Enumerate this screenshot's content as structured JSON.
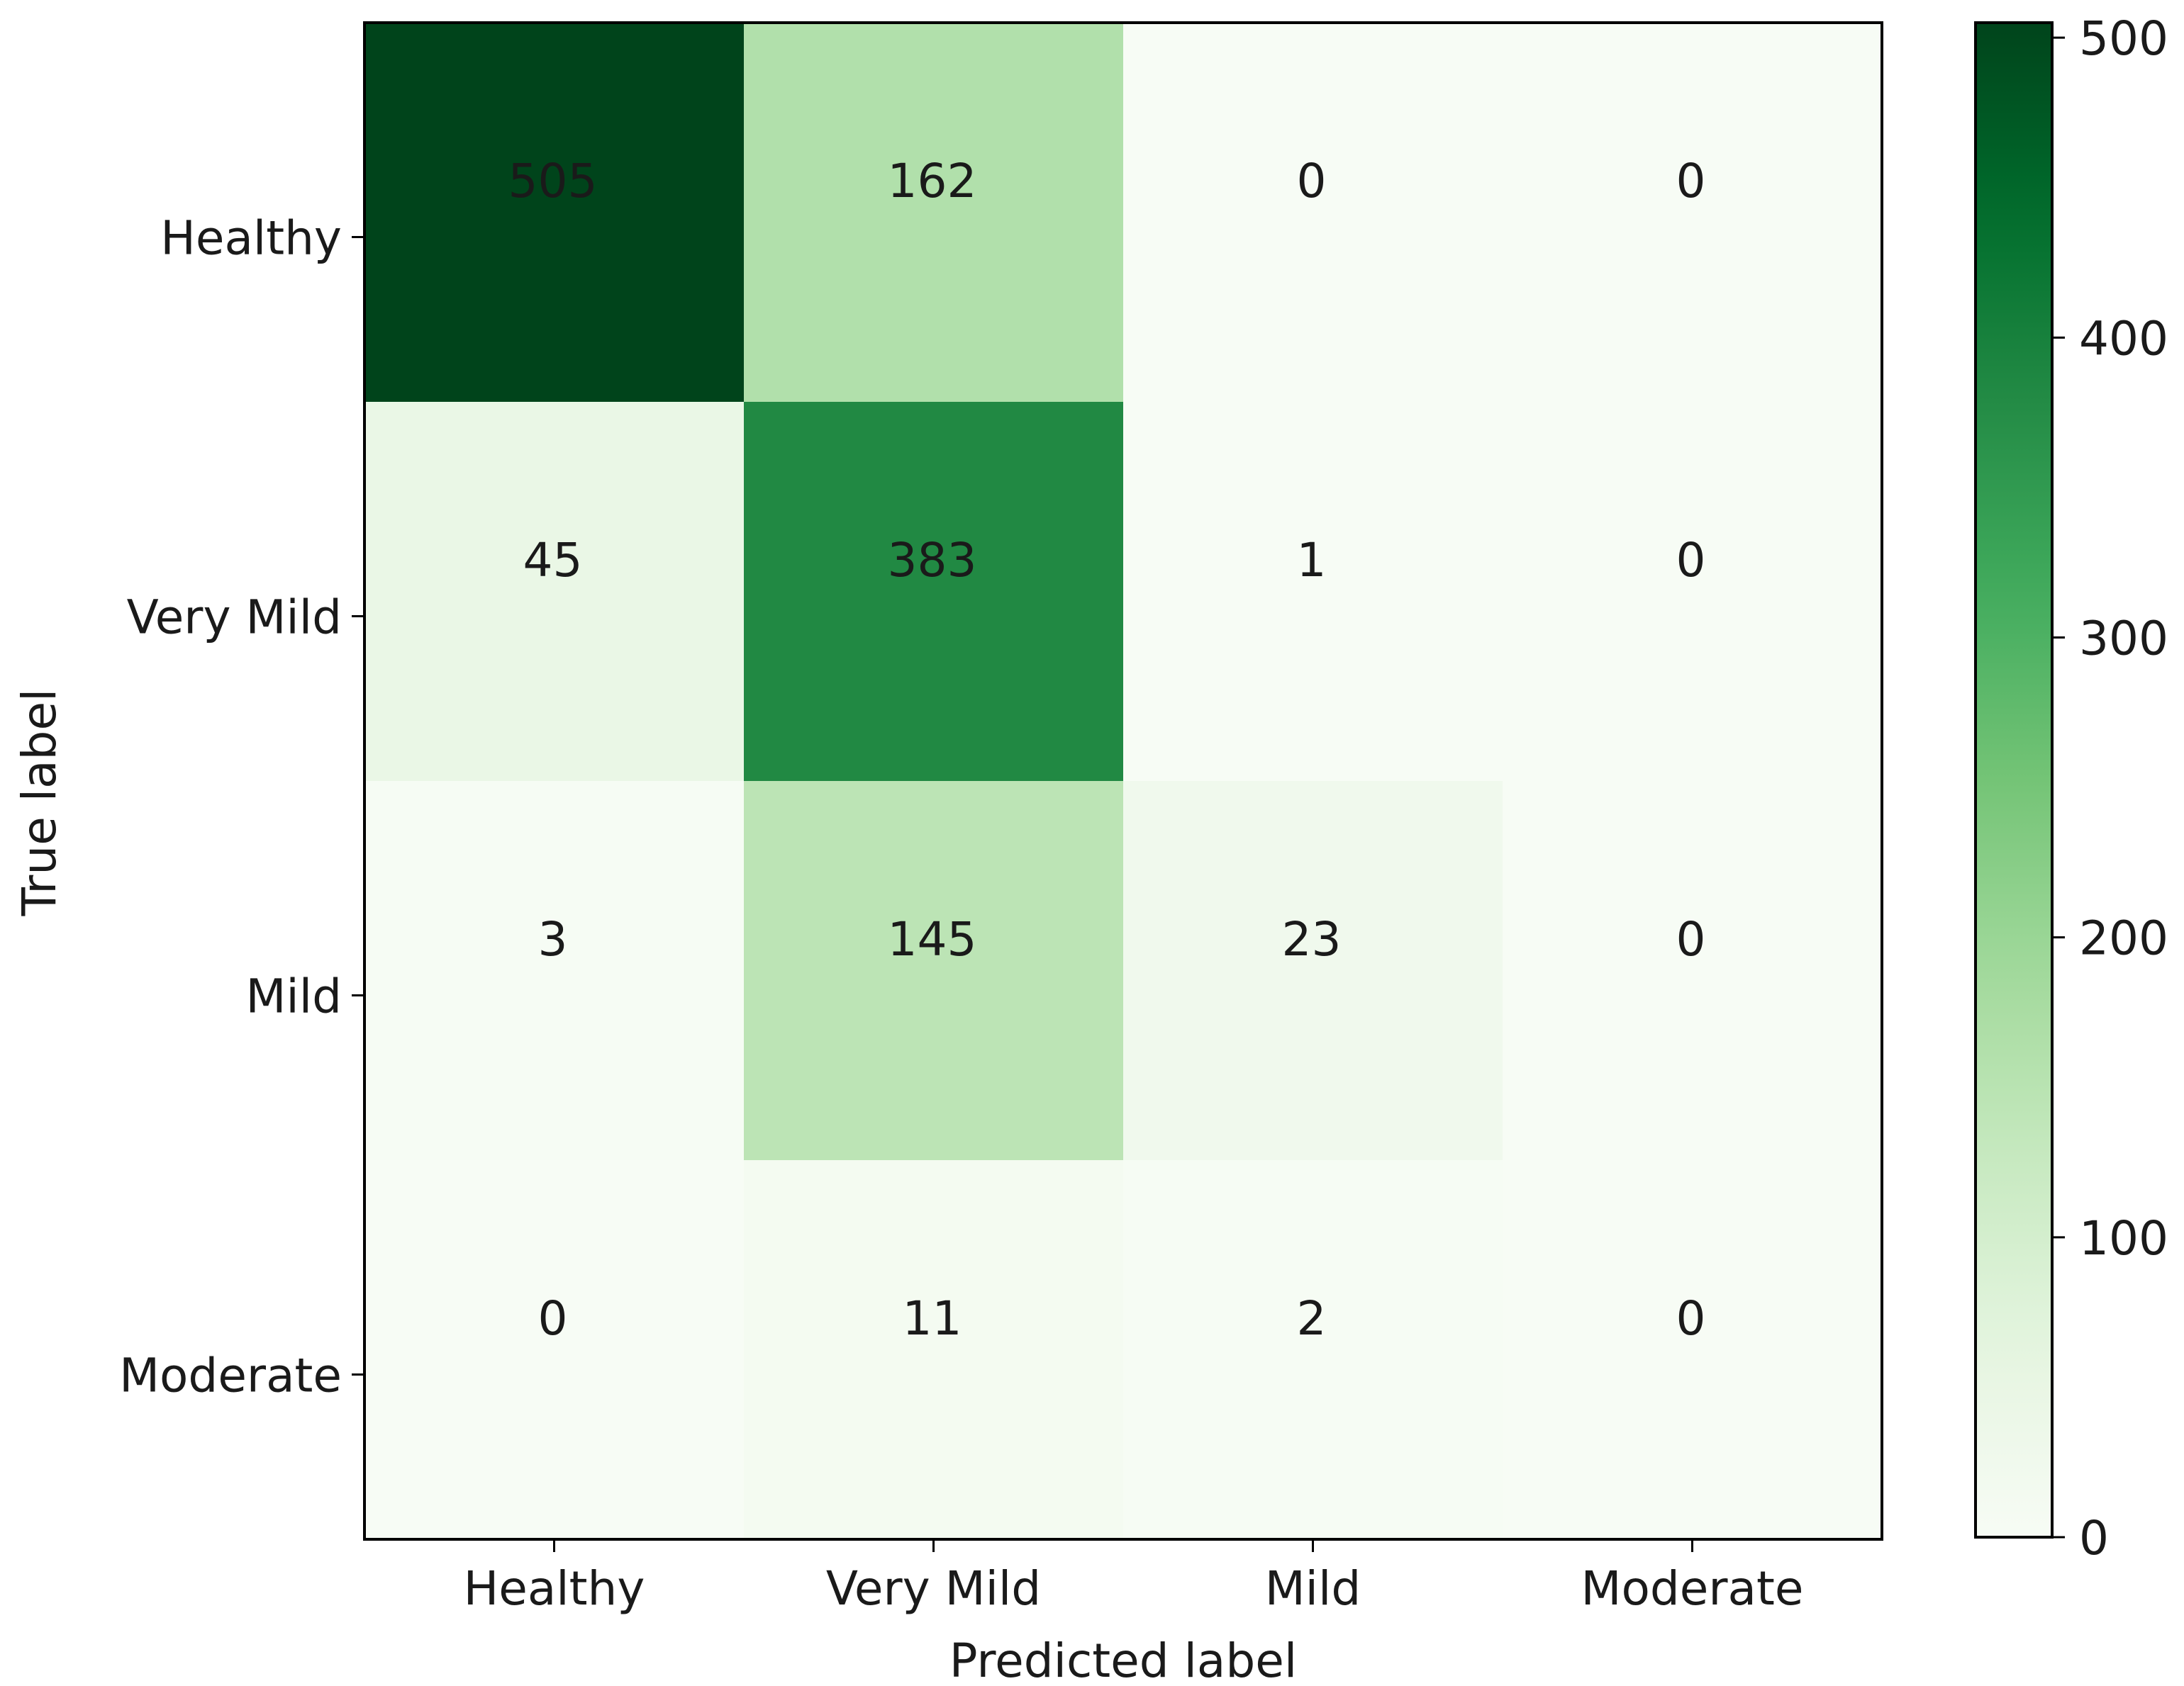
{
  "chart_data": {
    "type": "heatmap",
    "title": "",
    "xlabel": "Predicted label",
    "ylabel": "True label",
    "x_categories": [
      "Healthy",
      "Very Mild",
      "Mild",
      "Moderate"
    ],
    "y_categories": [
      "Healthy",
      "Very Mild",
      "Mild",
      "Moderate"
    ],
    "values": [
      [
        505,
        162,
        0,
        0
      ],
      [
        45,
        383,
        1,
        0
      ],
      [
        3,
        145,
        23,
        0
      ],
      [
        0,
        11,
        2,
        0
      ]
    ],
    "colorbar": {
      "min": 0,
      "max": 505,
      "ticks": [
        0,
        100,
        200,
        300,
        400,
        500
      ],
      "tick_labels": [
        "0",
        "100",
        "200",
        "300",
        "400",
        "500"
      ],
      "colormap": "Greens"
    },
    "colors": {
      "low": "#f7fcf5",
      "high": "#00441b",
      "cell_text": "#1a1a1a",
      "axes": "#000000"
    },
    "grid": false,
    "legend": "colorbar-right"
  }
}
